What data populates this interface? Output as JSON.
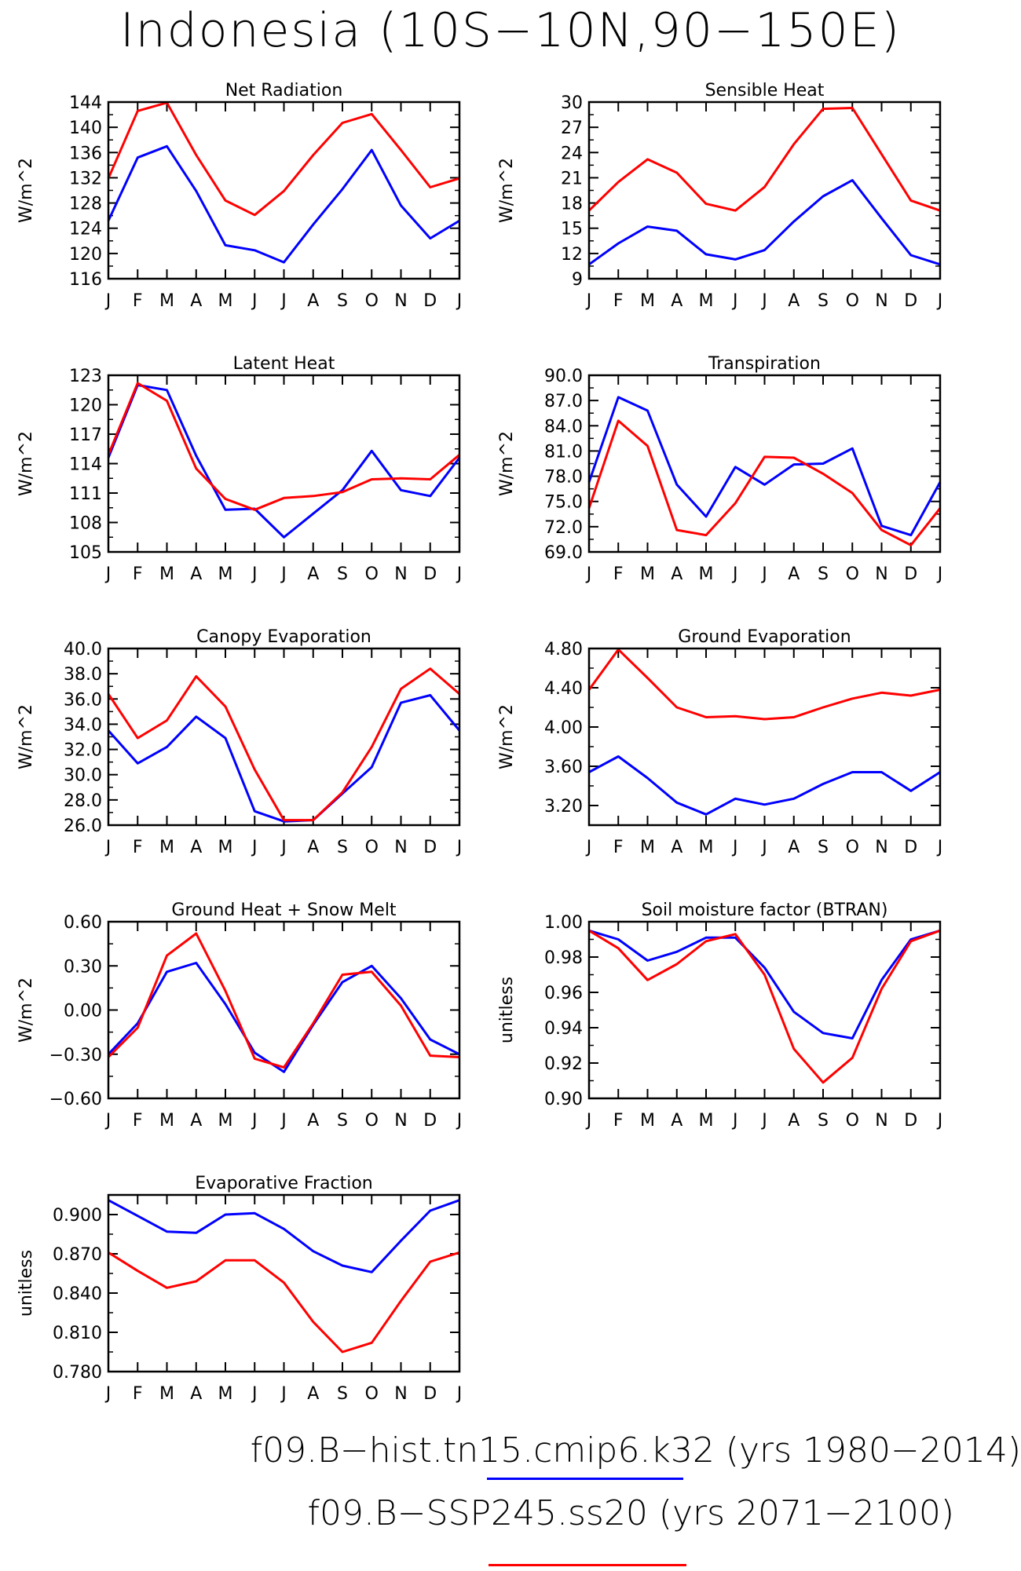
{
  "title": "Indonesia (10S−10N,90−150E)",
  "legend": [
    {
      "label": "f09.B−hist.tn15.cmip6.k32 (yrs 1980−2014)",
      "color": "#0000ff"
    },
    {
      "label": "f09.B−SSP245.ss20 (yrs 2071−2100)",
      "color": "#ff0000"
    }
  ],
  "colors": {
    "hist": "#0000ff",
    "ssp": "#ff0000"
  },
  "chart_data": [
    {
      "type": "line",
      "title": "Net Radiation",
      "ylabel": "W/m^2",
      "x": [
        "J",
        "F",
        "M",
        "A",
        "M",
        "J",
        "J",
        "A",
        "S",
        "O",
        "N",
        "D",
        "J"
      ],
      "ylim": [
        116,
        144
      ],
      "yticks": [
        "116",
        "120",
        "124",
        "128",
        "132",
        "136",
        "140",
        "144"
      ],
      "series": [
        {
          "values": [
            125.2,
            135.2,
            137.0,
            129.9,
            121.3,
            120.5,
            118.6,
            124.6,
            130.2,
            136.4,
            127.6,
            122.4,
            125.2
          ]
        },
        {
          "values": [
            131.9,
            142.6,
            143.9,
            135.6,
            128.4,
            126.1,
            129.9,
            135.6,
            140.7,
            142.1,
            136.4,
            130.5,
            131.9
          ]
        }
      ]
    },
    {
      "type": "line",
      "title": "Sensible Heat",
      "ylabel": "W/m^2",
      "x": [
        "J",
        "F",
        "M",
        "A",
        "M",
        "J",
        "J",
        "A",
        "S",
        "O",
        "N",
        "D",
        "J"
      ],
      "ylim": [
        9,
        30
      ],
      "yticks": [
        "9",
        "12",
        "15",
        "18",
        "21",
        "24",
        "27",
        "30"
      ],
      "series": [
        {
          "values": [
            10.7,
            13.2,
            15.2,
            14.7,
            11.9,
            11.3,
            12.4,
            15.8,
            18.8,
            20.7,
            16.2,
            11.8,
            10.7
          ]
        },
        {
          "values": [
            17.1,
            20.5,
            23.2,
            21.6,
            17.9,
            17.1,
            19.9,
            25.0,
            29.2,
            29.3,
            23.8,
            18.3,
            17.1
          ]
        }
      ]
    },
    {
      "type": "line",
      "title": "Latent Heat",
      "ylabel": "W/m^2",
      "x": [
        "J",
        "F",
        "M",
        "A",
        "M",
        "J",
        "J",
        "A",
        "S",
        "O",
        "N",
        "D",
        "J"
      ],
      "ylim": [
        105,
        123
      ],
      "yticks": [
        "105",
        "108",
        "111",
        "114",
        "117",
        "120",
        "123"
      ],
      "series": [
        {
          "values": [
            114.6,
            122.0,
            121.5,
            114.8,
            109.3,
            109.4,
            106.5,
            108.9,
            111.3,
            115.3,
            111.3,
            110.7,
            114.6
          ]
        },
        {
          "values": [
            114.9,
            122.2,
            120.4,
            113.5,
            110.4,
            109.3,
            110.5,
            110.7,
            111.1,
            112.4,
            112.5,
            112.4,
            114.9
          ]
        }
      ]
    },
    {
      "type": "line",
      "title": "Transpiration",
      "ylabel": "W/m^2",
      "x": [
        "J",
        "F",
        "M",
        "A",
        "M",
        "J",
        "J",
        "A",
        "S",
        "O",
        "N",
        "D",
        "J"
      ],
      "ylim": [
        69,
        90
      ],
      "yticks": [
        "69.0",
        "72.0",
        "75.0",
        "78.0",
        "81.0",
        "84.0",
        "87.0",
        "90.0"
      ],
      "series": [
        {
          "values": [
            77.3,
            87.4,
            85.8,
            77.0,
            73.2,
            79.1,
            77.0,
            79.4,
            79.5,
            81.3,
            72.1,
            71.0,
            77.3
          ]
        },
        {
          "values": [
            74.2,
            84.6,
            81.6,
            71.6,
            71.0,
            74.8,
            80.3,
            80.2,
            78.3,
            76.0,
            71.6,
            69.8,
            74.2
          ]
        }
      ]
    },
    {
      "type": "line",
      "title": "Canopy Evaporation",
      "ylabel": "W/m^2",
      "x": [
        "J",
        "F",
        "M",
        "A",
        "M",
        "J",
        "J",
        "A",
        "S",
        "O",
        "N",
        "D",
        "J"
      ],
      "ylim": [
        26,
        40
      ],
      "yticks": [
        "26.0",
        "28.0",
        "30.0",
        "32.0",
        "34.0",
        "36.0",
        "38.0",
        "40.0"
      ],
      "series": [
        {
          "values": [
            33.5,
            30.9,
            32.2,
            34.6,
            32.9,
            27.1,
            26.3,
            26.4,
            28.5,
            30.6,
            35.7,
            36.3,
            33.5
          ]
        },
        {
          "values": [
            36.4,
            32.9,
            34.3,
            37.8,
            35.4,
            30.4,
            26.4,
            26.4,
            28.6,
            32.2,
            36.8,
            38.4,
            36.4
          ]
        }
      ]
    },
    {
      "type": "line",
      "title": "Ground Evaporation",
      "ylabel": "W/m^2",
      "x": [
        "J",
        "F",
        "M",
        "A",
        "M",
        "J",
        "J",
        "A",
        "S",
        "O",
        "N",
        "D",
        "J"
      ],
      "ylim": [
        3.0,
        4.8
      ],
      "yticks": [
        "3.20",
        "3.60",
        "4.00",
        "4.40",
        "4.80"
      ],
      "series": [
        {
          "values": [
            3.54,
            3.7,
            3.48,
            3.23,
            3.11,
            3.27,
            3.21,
            3.27,
            3.42,
            3.54,
            3.54,
            3.35,
            3.54
          ]
        },
        {
          "values": [
            4.38,
            4.79,
            4.5,
            4.2,
            4.1,
            4.11,
            4.08,
            4.1,
            4.2,
            4.29,
            4.35,
            4.32,
            4.38
          ]
        }
      ]
    },
    {
      "type": "line",
      "title": "Ground Heat + Snow Melt",
      "ylabel": "W/m^2",
      "x": [
        "J",
        "F",
        "M",
        "A",
        "M",
        "J",
        "J",
        "A",
        "S",
        "O",
        "N",
        "D",
        "J"
      ],
      "ylim": [
        -0.6,
        0.6
      ],
      "yticks": [
        "−0.60",
        "−0.30",
        "0.00",
        "0.30",
        "0.60"
      ],
      "series": [
        {
          "values": [
            -0.3,
            -0.09,
            0.26,
            0.32,
            0.04,
            -0.29,
            -0.42,
            -0.1,
            0.19,
            0.3,
            0.08,
            -0.2,
            -0.3
          ]
        },
        {
          "values": [
            -0.32,
            -0.12,
            0.37,
            0.52,
            0.13,
            -0.33,
            -0.39,
            -0.09,
            0.24,
            0.26,
            0.03,
            -0.31,
            -0.32
          ]
        }
      ]
    },
    {
      "type": "line",
      "title": "Soil moisture factor (BTRAN)",
      "ylabel": "unitless",
      "x": [
        "J",
        "F",
        "M",
        "A",
        "M",
        "J",
        "J",
        "A",
        "S",
        "O",
        "N",
        "D",
        "J"
      ],
      "ylim": [
        0.9,
        1.0
      ],
      "yticks": [
        "0.90",
        "0.92",
        "0.94",
        "0.96",
        "0.98",
        "1.00"
      ],
      "series": [
        {
          "values": [
            0.995,
            0.99,
            0.978,
            0.983,
            0.991,
            0.991,
            0.974,
            0.949,
            0.937,
            0.934,
            0.967,
            0.99,
            0.995
          ]
        },
        {
          "values": [
            0.995,
            0.985,
            0.967,
            0.976,
            0.989,
            0.993,
            0.97,
            0.928,
            0.909,
            0.923,
            0.962,
            0.989,
            0.995
          ]
        }
      ]
    },
    {
      "type": "line",
      "title": "Evaporative Fraction",
      "ylabel": "unitless",
      "x": [
        "J",
        "F",
        "M",
        "A",
        "M",
        "J",
        "J",
        "A",
        "S",
        "O",
        "N",
        "D",
        "J"
      ],
      "ylim": [
        0.78,
        0.915
      ],
      "yticks": [
        "0.780",
        "0.810",
        "0.840",
        "0.870",
        "0.900"
      ],
      "series": [
        {
          "values": [
            0.911,
            0.899,
            0.887,
            0.886,
            0.9,
            0.901,
            0.889,
            0.872,
            0.861,
            0.856,
            0.88,
            0.903,
            0.911
          ]
        },
        {
          "values": [
            0.871,
            0.857,
            0.844,
            0.849,
            0.865,
            0.865,
            0.848,
            0.818,
            0.795,
            0.802,
            0.834,
            0.864,
            0.871
          ]
        }
      ]
    }
  ]
}
